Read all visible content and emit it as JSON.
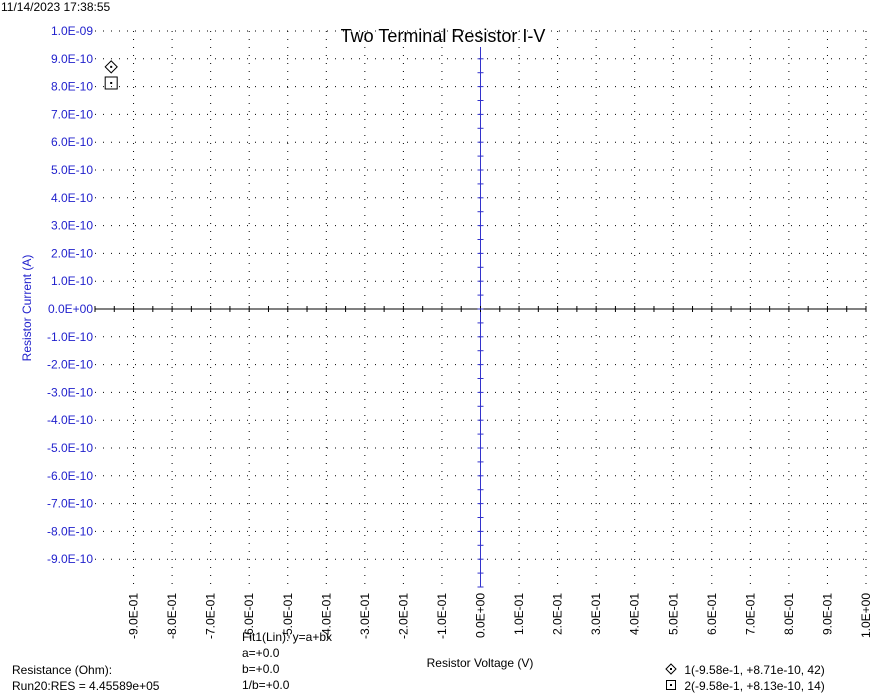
{
  "timestamp": "11/14/2023 17:38:55",
  "colors": {
    "axis": "#3333cc",
    "text_blue": "#1f1fcc",
    "grid": "#000000",
    "x_axis": "#000000"
  },
  "chart_data": {
    "type": "scatter",
    "title": "Two Terminal Resistor I-V",
    "xlabel": "Resistor Voltage (V)",
    "ylabel": "Resistor Current (A)",
    "xlim": [
      -1.0,
      1.0
    ],
    "ylim": [
      -1e-09,
      1e-09
    ],
    "grid": true,
    "x_ticks": [
      -0.9,
      -0.8,
      -0.7,
      -0.6,
      -0.5,
      -0.4,
      -0.3,
      -0.2,
      -0.1,
      0.0,
      0.1,
      0.2,
      0.3,
      0.4,
      0.5,
      0.6,
      0.7,
      0.8,
      0.9,
      1.0
    ],
    "x_tick_labels": [
      "-9.0E-01",
      "-8.0E-01",
      "-7.0E-01",
      "-6.0E-01",
      "-5.0E-01",
      "-4.0E-01",
      "-3.0E-01",
      "-2.0E-01",
      "-1.0E-01",
      "0.0E+00",
      "1.0E-01",
      "2.0E-01",
      "3.0E-01",
      "4.0E-01",
      "5.0E-01",
      "6.0E-01",
      "7.0E-01",
      "8.0E-01",
      "9.0E-01",
      "1.0E+00"
    ],
    "y_ticks": [
      1e-09,
      9e-10,
      8e-10,
      7e-10,
      6e-10,
      5e-10,
      4e-10,
      3e-10,
      2e-10,
      1e-10,
      0.0,
      -1e-10,
      -2e-10,
      -3e-10,
      -4e-10,
      -5e-10,
      -6e-10,
      -7e-10,
      -8e-10,
      -9e-10
    ],
    "y_tick_labels": [
      "1.0E-09",
      "9.0E-10",
      "8.0E-10",
      "7.0E-10",
      "6.0E-10",
      "5.0E-10",
      "4.0E-10",
      "3.0E-10",
      "2.0E-10",
      "1.0E-10",
      "0.0E+00",
      "-1.0E-10",
      "-2.0E-10",
      "-3.0E-10",
      "-4.0E-10",
      "-5.0E-10",
      "-6.0E-10",
      "-7.0E-10",
      "-8.0E-10",
      "-9.0E-10"
    ],
    "markers": [
      {
        "symbol": "diamond",
        "x": -0.958,
        "y": 8.71e-10,
        "label": "1(-9.58e-1, +8.71e-10, 42)"
      },
      {
        "symbol": "square",
        "x": -0.958,
        "y": 8.13e-10,
        "label": "2(-9.58e-1, +8.13e-10, 14)"
      }
    ]
  },
  "fit": {
    "header": "Fit1(Lin):  y=a+bx",
    "a": "a=+0.0",
    "b": "b=+0.0",
    "inv_b": "1/b=+0.0"
  },
  "resistance": {
    "label": "Resistance (Ohm):",
    "value": "Run20:RES = 4.45589e+05"
  }
}
